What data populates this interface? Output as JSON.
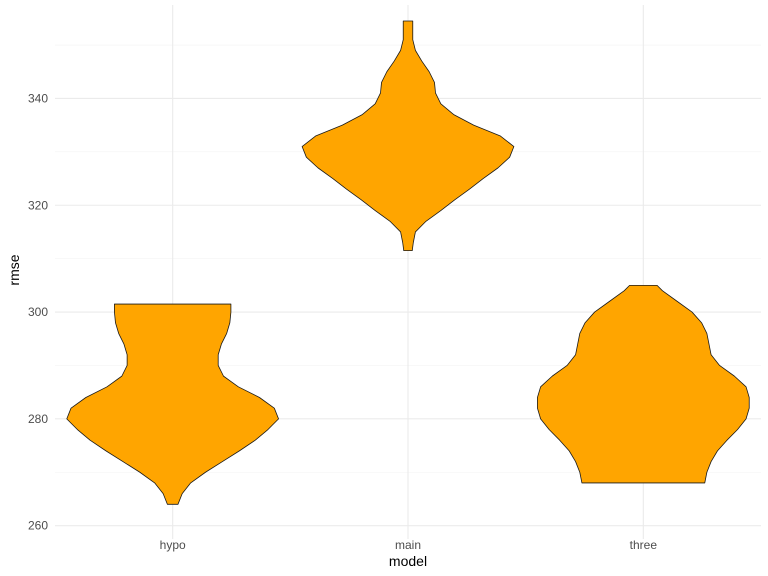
{
  "chart_data": {
    "type": "violin",
    "title": "",
    "xlabel": "model",
    "ylabel": "rmse",
    "categories": [
      "hypo",
      "main",
      "three"
    ],
    "ylim": [
      257.5,
      357.5
    ],
    "yticks": [
      260,
      280,
      300,
      320,
      340
    ],
    "grid": true,
    "fill_color": "#FFA500",
    "outline_color": "#1a1a1a",
    "violins": [
      {
        "category": "hypo",
        "min": 264,
        "max": 301.5,
        "profile": [
          [
            264,
            0.05
          ],
          [
            266,
            0.09
          ],
          [
            268,
            0.17
          ],
          [
            270,
            0.31
          ],
          [
            272,
            0.47
          ],
          [
            274,
            0.63
          ],
          [
            276,
            0.78
          ],
          [
            278,
            0.9
          ],
          [
            280,
            1.0
          ],
          [
            282,
            0.96
          ],
          [
            284,
            0.82
          ],
          [
            286,
            0.62
          ],
          [
            288,
            0.48
          ],
          [
            290,
            0.43
          ],
          [
            292,
            0.43
          ],
          [
            294,
            0.46
          ],
          [
            296,
            0.51
          ],
          [
            298,
            0.54
          ],
          [
            300,
            0.55
          ],
          [
            301.5,
            0.55
          ]
        ]
      },
      {
        "category": "main",
        "min": 311.5,
        "max": 354.5,
        "profile": [
          [
            311.5,
            0.04
          ],
          [
            313,
            0.05
          ],
          [
            315,
            0.07
          ],
          [
            317,
            0.17
          ],
          [
            319,
            0.31
          ],
          [
            321,
            0.44
          ],
          [
            323,
            0.58
          ],
          [
            325,
            0.71
          ],
          [
            327,
            0.85
          ],
          [
            329,
            0.96
          ],
          [
            331,
            1.0
          ],
          [
            333,
            0.87
          ],
          [
            335,
            0.62
          ],
          [
            337,
            0.43
          ],
          [
            339,
            0.31
          ],
          [
            341,
            0.26
          ],
          [
            343,
            0.25
          ],
          [
            345,
            0.2
          ],
          [
            347,
            0.13
          ],
          [
            349,
            0.07
          ],
          [
            351,
            0.045
          ],
          [
            353,
            0.045
          ],
          [
            354.5,
            0.045
          ]
        ]
      },
      {
        "category": "three",
        "min": 268,
        "max": 305,
        "profile": [
          [
            268,
            0.58
          ],
          [
            270,
            0.6
          ],
          [
            272,
            0.64
          ],
          [
            274,
            0.7
          ],
          [
            276,
            0.79
          ],
          [
            278,
            0.89
          ],
          [
            280,
            0.97
          ],
          [
            282,
            1.0
          ],
          [
            284,
            1.0
          ],
          [
            286,
            0.97
          ],
          [
            288,
            0.86
          ],
          [
            290,
            0.72
          ],
          [
            292,
            0.64
          ],
          [
            294,
            0.62
          ],
          [
            296,
            0.6
          ],
          [
            298,
            0.55
          ],
          [
            300,
            0.46
          ],
          [
            302,
            0.32
          ],
          [
            304,
            0.18
          ],
          [
            305,
            0.13
          ]
        ]
      }
    ]
  }
}
